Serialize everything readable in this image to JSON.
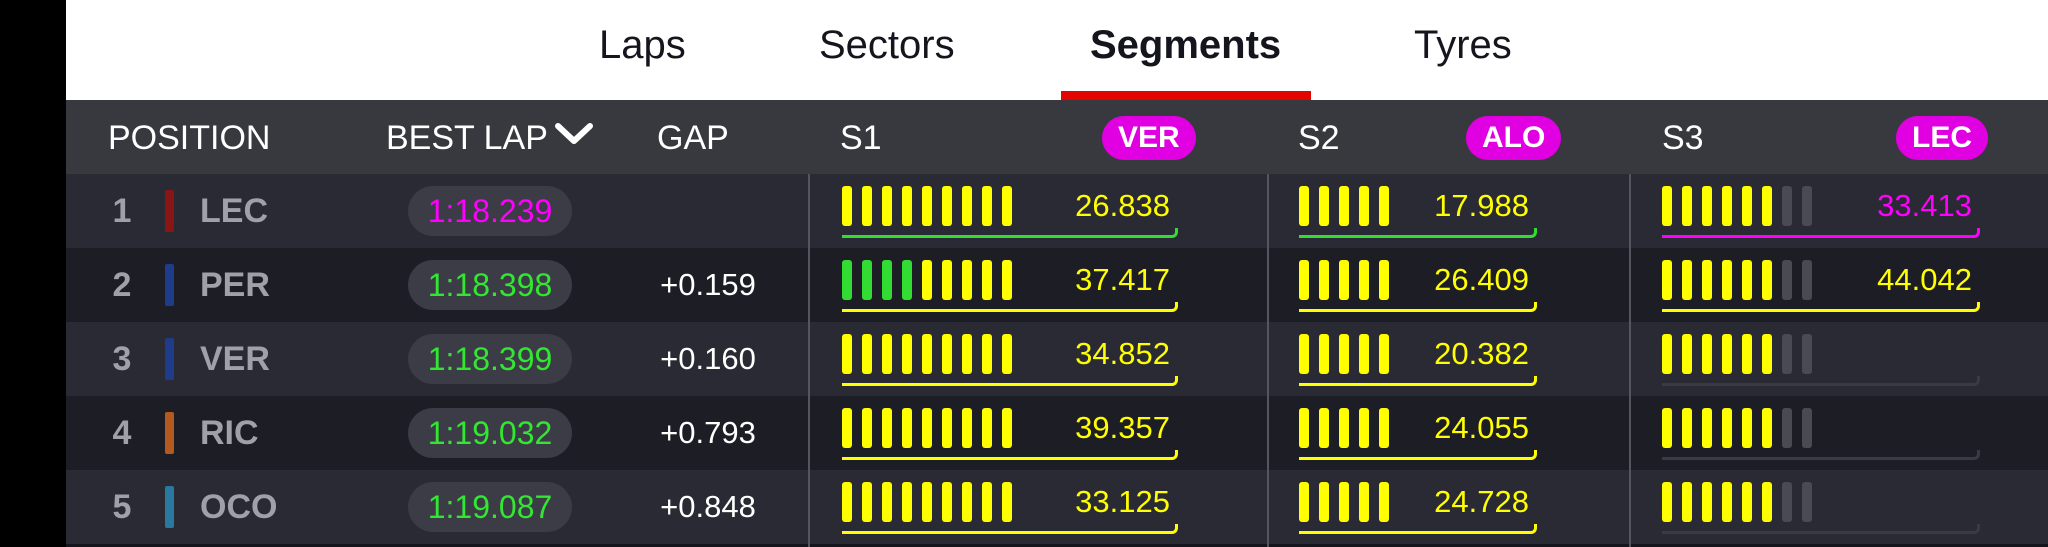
{
  "tabs": [
    {
      "label": "Laps",
      "active": false
    },
    {
      "label": "Sectors",
      "active": false
    },
    {
      "label": "Segments",
      "active": true
    },
    {
      "label": "Tyres",
      "active": false
    }
  ],
  "header": {
    "position": "POSITION",
    "best_lap": "BEST LAP",
    "best_lap_icon": "chevron-down-icon",
    "gap": "GAP",
    "s1": "S1",
    "s1_fastest": "VER",
    "s2": "S2",
    "s2_fastest": "ALO",
    "s3": "S3",
    "s3_fastest": "LEC"
  },
  "colors": {
    "purple": "#e100e1",
    "green": "#32dc32",
    "yellow": "#ffff00",
    "grey": "#4a4a52",
    "red": "#e10600"
  },
  "rows": [
    {
      "pos": "1",
      "code": "LEC",
      "team_color": "#8a1515",
      "best_lap": "1:18.239",
      "best_lap_color": "#ff00ff",
      "gap": "",
      "s1": {
        "time": "26.838",
        "time_color": "#ffff00",
        "line": "#32dc32",
        "segs": [
          "y",
          "y",
          "y",
          "y",
          "y",
          "y",
          "y",
          "y",
          "y"
        ]
      },
      "s2": {
        "time": "17.988",
        "time_color": "#ffff00",
        "line": "#32dc32",
        "segs": [
          "y",
          "y",
          "y",
          "y",
          "y"
        ]
      },
      "s3": {
        "time": "33.413",
        "time_color": "#ff00ff",
        "line": "#ff00ff",
        "segs": [
          "y",
          "y",
          "y",
          "y",
          "y",
          "y",
          "g",
          "g"
        ]
      }
    },
    {
      "pos": "2",
      "code": "PER",
      "team_color": "#1e3c8a",
      "best_lap": "1:18.398",
      "best_lap_color": "#32e632",
      "gap": "+0.159",
      "s1": {
        "time": "37.417",
        "time_color": "#ffff00",
        "line": "#ffff00",
        "segs": [
          "G",
          "G",
          "G",
          "G",
          "y",
          "y",
          "y",
          "y",
          "y"
        ]
      },
      "s2": {
        "time": "26.409",
        "time_color": "#ffff00",
        "line": "#ffff00",
        "segs": [
          "y",
          "y",
          "y",
          "y",
          "y"
        ]
      },
      "s3": {
        "time": "44.042",
        "time_color": "#ffff00",
        "line": "#ffff00",
        "segs": [
          "y",
          "y",
          "y",
          "y",
          "y",
          "y",
          "g",
          "g"
        ]
      }
    },
    {
      "pos": "3",
      "code": "VER",
      "team_color": "#1e3c8a",
      "best_lap": "1:18.399",
      "best_lap_color": "#32e632",
      "gap": "+0.160",
      "s1": {
        "time": "34.852",
        "time_color": "#ffff00",
        "line": "#ffff00",
        "segs": [
          "y",
          "y",
          "y",
          "y",
          "y",
          "y",
          "y",
          "y",
          "y"
        ]
      },
      "s2": {
        "time": "20.382",
        "time_color": "#ffff00",
        "line": "#ffff00",
        "segs": [
          "y",
          "y",
          "y",
          "y",
          "y"
        ]
      },
      "s3": {
        "time": "",
        "time_color": "#ffff00",
        "line": "#3a3a44",
        "segs": [
          "y",
          "y",
          "y",
          "y",
          "y",
          "y",
          "g",
          "g"
        ]
      }
    },
    {
      "pos": "4",
      "code": "RIC",
      "team_color": "#b45a1e",
      "best_lap": "1:19.032",
      "best_lap_color": "#32e632",
      "gap": "+0.793",
      "s1": {
        "time": "39.357",
        "time_color": "#ffff00",
        "line": "#ffff00",
        "segs": [
          "y",
          "y",
          "y",
          "y",
          "y",
          "y",
          "y",
          "y",
          "y"
        ]
      },
      "s2": {
        "time": "24.055",
        "time_color": "#ffff00",
        "line": "#ffff00",
        "segs": [
          "y",
          "y",
          "y",
          "y",
          "y"
        ]
      },
      "s3": {
        "time": "",
        "time_color": "#ffff00",
        "line": "#3a3a44",
        "segs": [
          "y",
          "y",
          "y",
          "y",
          "y",
          "y",
          "g",
          "g"
        ]
      }
    },
    {
      "pos": "5",
      "code": "OCO",
      "team_color": "#2878a0",
      "best_lap": "1:19.087",
      "best_lap_color": "#32e632",
      "gap": "+0.848",
      "s1": {
        "time": "33.125",
        "time_color": "#ffff00",
        "line": "#ffff00",
        "segs": [
          "y",
          "y",
          "y",
          "y",
          "y",
          "y",
          "y",
          "y",
          "y"
        ]
      },
      "s2": {
        "time": "24.728",
        "time_color": "#ffff00",
        "line": "#ffff00",
        "segs": [
          "y",
          "y",
          "y",
          "y",
          "y"
        ]
      },
      "s3": {
        "time": "",
        "time_color": "#ffff00",
        "line": "#3a3a44",
        "segs": [
          "y",
          "y",
          "y",
          "y",
          "y",
          "y",
          "g",
          "g"
        ]
      }
    }
  ]
}
